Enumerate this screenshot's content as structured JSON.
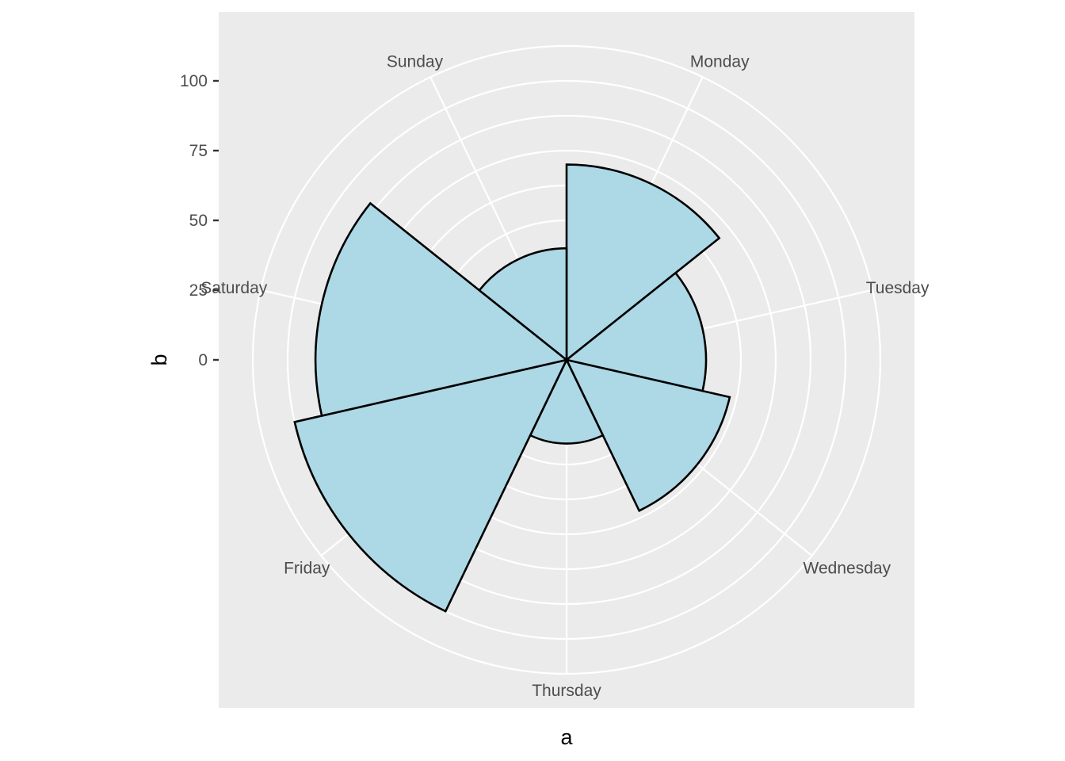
{
  "chart_data": {
    "type": "bar",
    "coord": "polar",
    "categories": [
      "Monday",
      "Tuesday",
      "Wednesday",
      "Thursday",
      "Friday",
      "Saturday",
      "Sunday"
    ],
    "values": [
      70,
      50,
      60,
      30,
      100,
      90,
      40
    ],
    "xlabel": "a",
    "ylabel": "b",
    "yticks": [
      0,
      25,
      50,
      75,
      100
    ],
    "ylim": [
      0,
      100
    ],
    "grid": true,
    "colors": {
      "fill": "#ADD8E6",
      "outline": "#000000",
      "panel": "#EBEBEB",
      "grid": "#FFFFFF"
    }
  }
}
